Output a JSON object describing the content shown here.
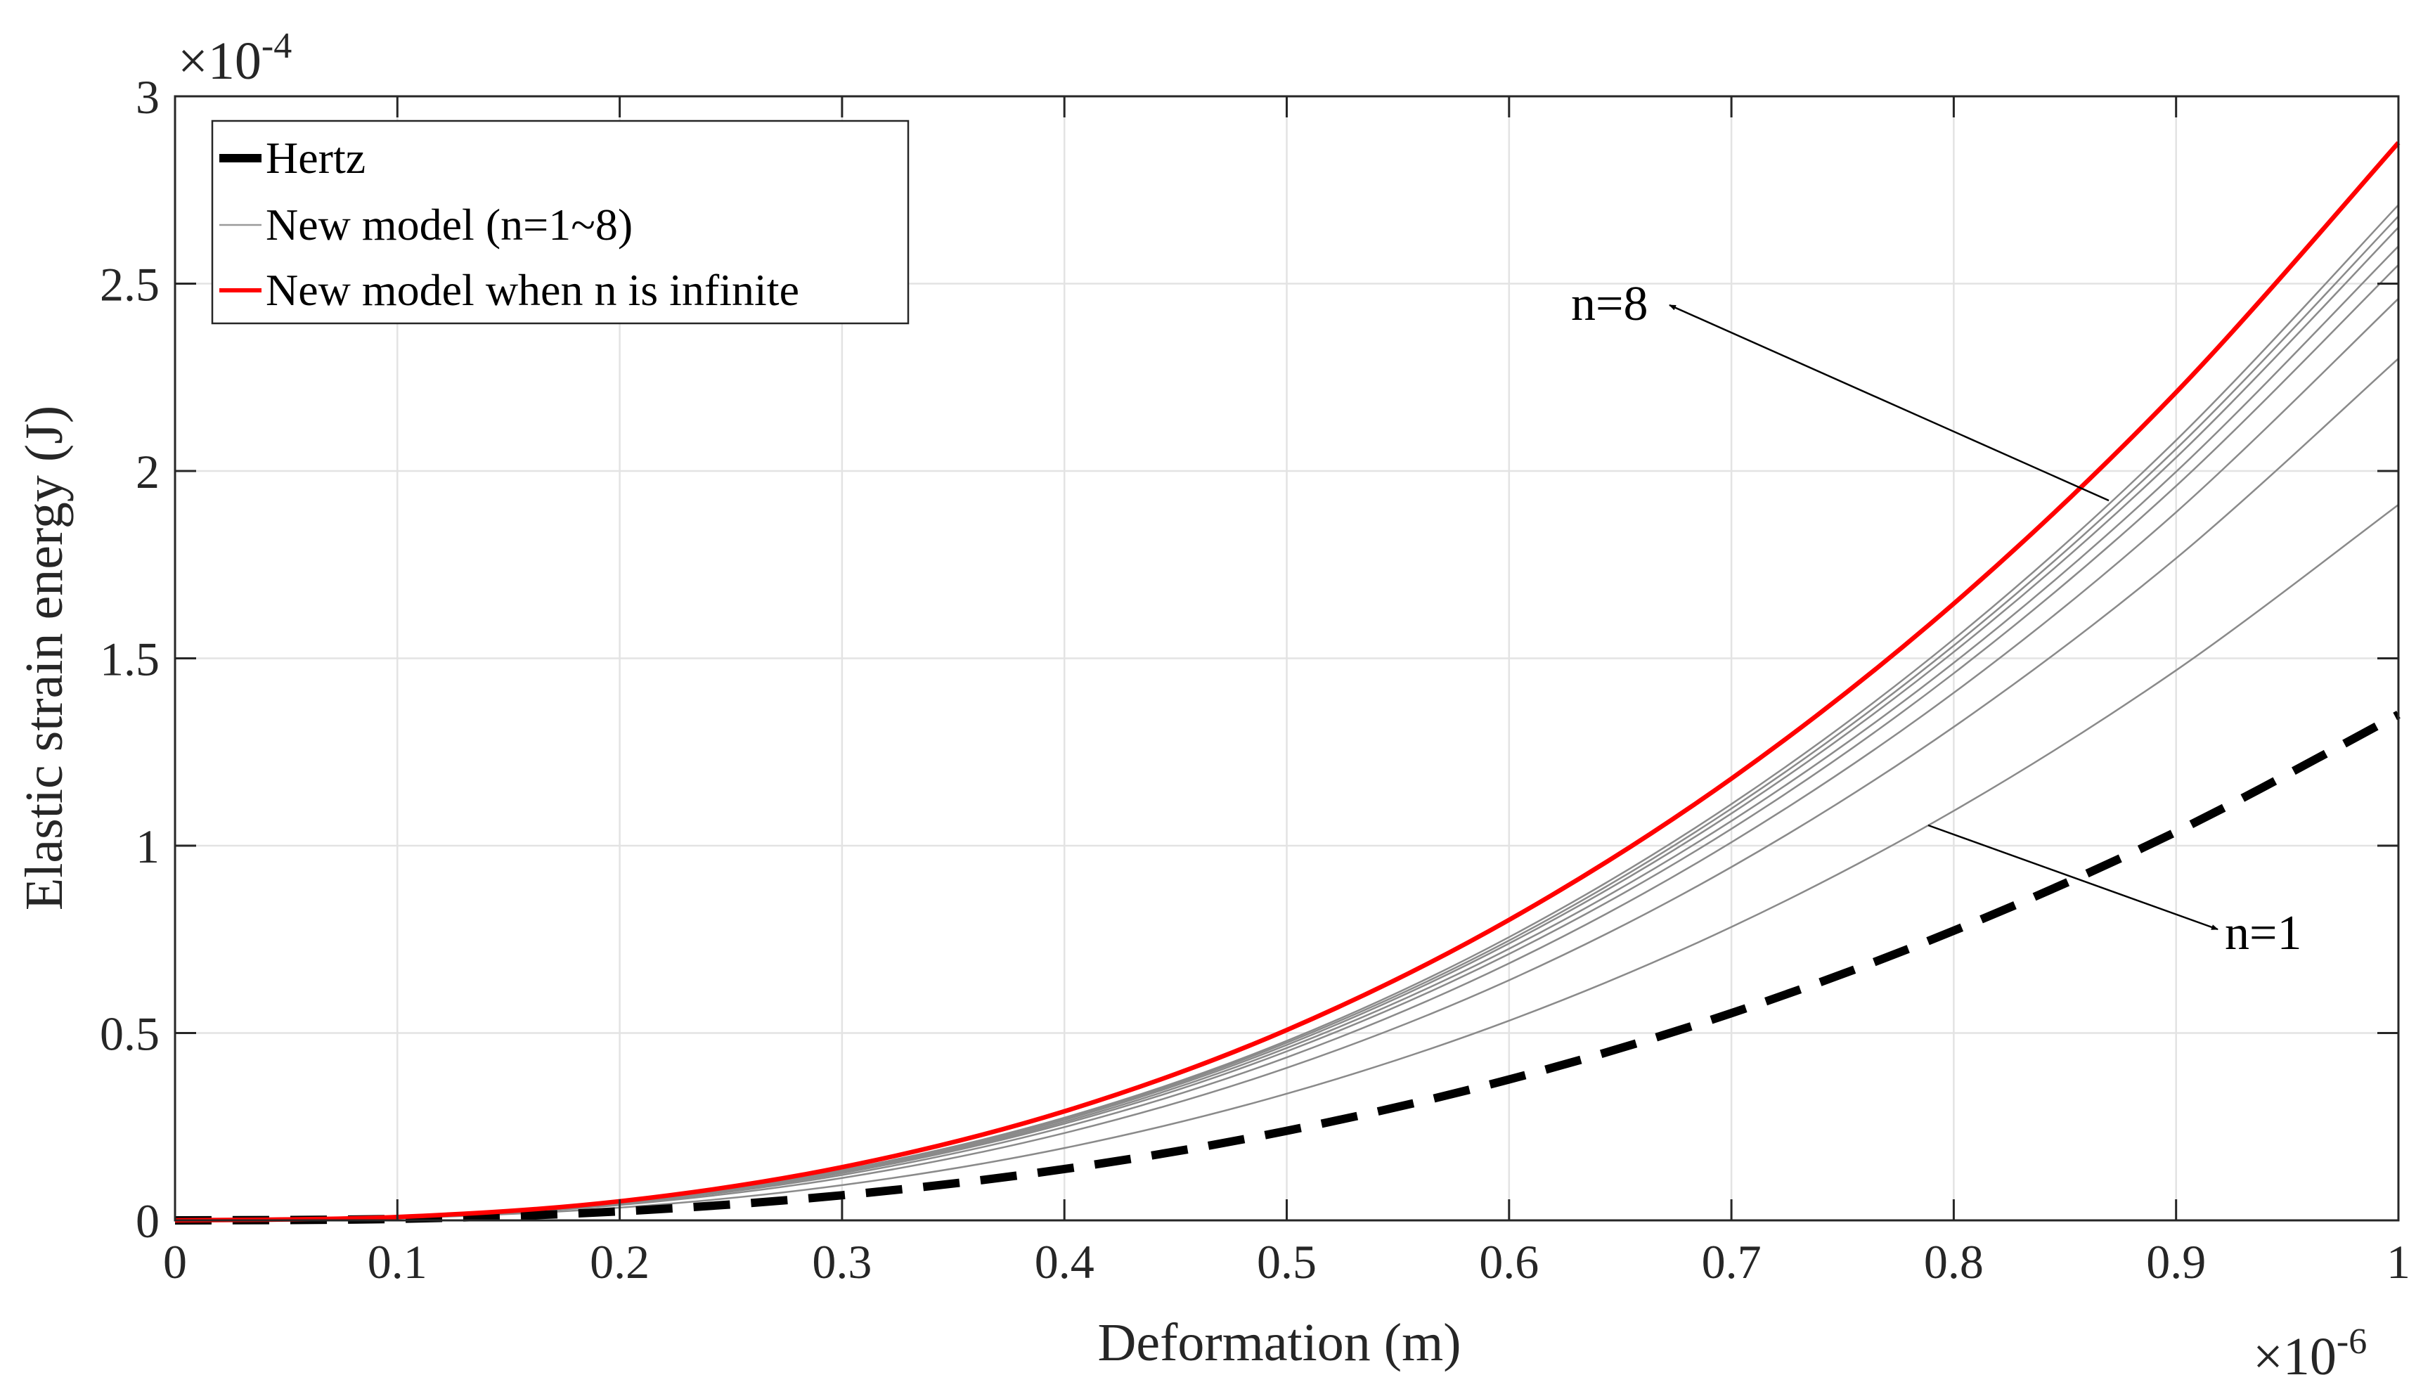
{
  "chart_data": {
    "type": "line",
    "title": "",
    "xlabel": "Deformation (m)",
    "ylabel": "Elastic strain energy (J)",
    "x_multiplier": "×10",
    "x_multiplier_exp": "-6",
    "y_multiplier": "×10",
    "y_multiplier_exp": "-4",
    "xlim": [
      0,
      1
    ],
    "ylim": [
      0,
      3
    ],
    "grid": true,
    "legend_position": "top-left",
    "xticks": [
      "0",
      "0.1",
      "0.2",
      "0.3",
      "0.4",
      "0.5",
      "0.6",
      "0.7",
      "0.8",
      "0.9",
      "1"
    ],
    "yticks": [
      "0",
      "0.5",
      "1",
      "1.5",
      "2",
      "2.5",
      "3"
    ],
    "x": [
      0,
      0.1,
      0.2,
      0.3,
      0.4,
      0.5,
      0.6,
      0.7,
      0.8,
      0.9,
      1
    ],
    "series": [
      {
        "name": "Hertz",
        "legend": "Hertz",
        "color": "#000000",
        "style": "dashed",
        "values": [
          0,
          0.004,
          0.024,
          0.067,
          0.137,
          0.239,
          0.376,
          0.553,
          0.773,
          1.037,
          1.35
        ]
      },
      {
        "name": "n=1",
        "legend": "New model (n=1~8)",
        "color": "#808080",
        "style": "thin",
        "values": [
          0,
          0.006,
          0.034,
          0.094,
          0.193,
          0.338,
          0.533,
          0.783,
          1.093,
          1.468,
          1.91
        ]
      },
      {
        "name": "n=2",
        "color": "#808080",
        "style": "thin",
        "values": [
          0,
          0.007,
          0.041,
          0.113,
          0.233,
          0.407,
          0.641,
          0.943,
          1.317,
          1.767,
          2.3
        ]
      },
      {
        "name": "n=3",
        "color": "#808080",
        "style": "thin",
        "values": [
          0,
          0.008,
          0.044,
          0.121,
          0.249,
          0.435,
          0.686,
          1.009,
          1.408,
          1.89,
          2.46
        ]
      },
      {
        "name": "n=4",
        "color": "#808080",
        "style": "thin",
        "values": [
          0,
          0.008,
          0.046,
          0.126,
          0.258,
          0.451,
          0.711,
          1.045,
          1.46,
          1.96,
          2.55
        ]
      },
      {
        "name": "n=5",
        "color": "#808080",
        "style": "thin",
        "values": [
          0,
          0.008,
          0.047,
          0.128,
          0.263,
          0.46,
          0.725,
          1.066,
          1.488,
          1.998,
          2.6
        ]
      },
      {
        "name": "n=6",
        "color": "#808080",
        "style": "thin",
        "values": [
          0,
          0.008,
          0.047,
          0.131,
          0.268,
          0.468,
          0.739,
          1.086,
          1.517,
          2.036,
          2.65
        ]
      },
      {
        "name": "n=7",
        "color": "#808080",
        "style": "thin",
        "values": [
          0,
          0.008,
          0.048,
          0.132,
          0.271,
          0.474,
          0.747,
          1.099,
          1.534,
          2.059,
          2.68
        ]
      },
      {
        "name": "n=8",
        "color": "#808080",
        "style": "thin",
        "values": [
          0,
          0.009,
          0.048,
          0.134,
          0.274,
          0.479,
          0.756,
          1.111,
          1.551,
          2.082,
          2.71
        ]
      },
      {
        "name": "n infinite",
        "legend": "New model when n is infinite",
        "color": "#ff0000",
        "style": "thick",
        "values": [
          0,
          0.009,
          0.051,
          0.142,
          0.291,
          0.508,
          0.802,
          1.179,
          1.646,
          2.21,
          2.876
        ]
      }
    ],
    "legend": [
      "Hertz",
      "New model (n=1~8)",
      "New model when n is infinite"
    ],
    "annotations": [
      {
        "text": "n=8",
        "arrow_to_series": "n=8",
        "arrow_from_data": [
          0.86,
          1.99
        ],
        "label_data": [
          0.67,
          2.44
        ]
      },
      {
        "text": "n=1",
        "arrow_to_series": "n=1",
        "arrow_from_data": [
          0.79,
          1.05
        ],
        "label_data": [
          0.92,
          0.77
        ]
      }
    ]
  }
}
